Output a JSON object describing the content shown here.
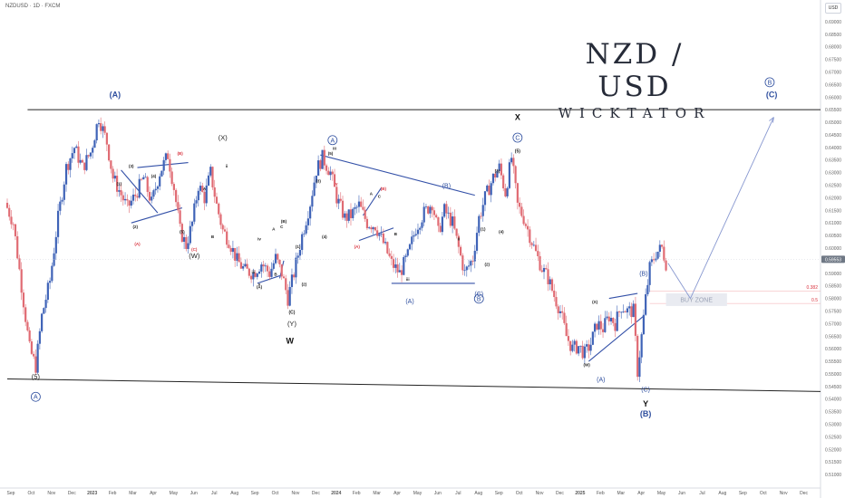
{
  "header": {
    "symbol_line": "NZDUSD · 1D · FXCM",
    "currency_badge": "USD"
  },
  "branding": {
    "pair": "NZD / USD",
    "author": "WICKTATOR"
  },
  "colors": {
    "bull": "#3f63b7",
    "bear": "#e06b73",
    "wave_line": "#3451a8",
    "label_blue": "#2f4f9f",
    "label_red": "#d9343f",
    "price_tag": "#6f7885"
  },
  "chart_data": {
    "type": "candlestick",
    "instrument": "NZDUSD",
    "timeframe": "1D",
    "ylim": [
      0.505,
      0.695
    ],
    "price_ticks": [
      "0.69500",
      "0.69000",
      "0.68500",
      "0.68000",
      "0.67500",
      "0.67000",
      "0.66500",
      "0.66000",
      "0.65500",
      "0.65000",
      "0.64500",
      "0.64000",
      "0.63500",
      "0.63000",
      "0.62500",
      "0.62000",
      "0.61500",
      "0.61000",
      "0.60500",
      "0.60000",
      "0.59500",
      "0.59000",
      "0.58500",
      "0.58000",
      "0.57500",
      "0.57000",
      "0.56500",
      "0.56000",
      "0.55500",
      "0.55000",
      "0.54500",
      "0.54000",
      "0.53500",
      "0.53000",
      "0.52500",
      "0.52000",
      "0.51500",
      "0.51000"
    ],
    "time_ticks": [
      {
        "label": "Sep",
        "t": 0
      },
      {
        "label": "Oct",
        "t": 1
      },
      {
        "label": "Nov",
        "t": 2
      },
      {
        "label": "Dec",
        "t": 3
      },
      {
        "label": "2023",
        "t": 4
      },
      {
        "label": "Feb",
        "t": 5
      },
      {
        "label": "Mar",
        "t": 6
      },
      {
        "label": "Apr",
        "t": 7
      },
      {
        "label": "May",
        "t": 8
      },
      {
        "label": "Jun",
        "t": 9
      },
      {
        "label": "Jul",
        "t": 10
      },
      {
        "label": "Aug",
        "t": 11
      },
      {
        "label": "Sep",
        "t": 12
      },
      {
        "label": "Oct",
        "t": 13
      },
      {
        "label": "Nov",
        "t": 14
      },
      {
        "label": "Dec",
        "t": 15
      },
      {
        "label": "2024",
        "t": 16
      },
      {
        "label": "Feb",
        "t": 17
      },
      {
        "label": "Mar",
        "t": 18
      },
      {
        "label": "Apr",
        "t": 19
      },
      {
        "label": "May",
        "t": 20
      },
      {
        "label": "Jun",
        "t": 21
      },
      {
        "label": "Jul",
        "t": 22
      },
      {
        "label": "Aug",
        "t": 23
      },
      {
        "label": "Sep",
        "t": 24
      },
      {
        "label": "Oct",
        "t": 25
      },
      {
        "label": "Nov",
        "t": 26
      },
      {
        "label": "Dec",
        "t": 27
      },
      {
        "label": "2025",
        "t": 28
      },
      {
        "label": "Feb",
        "t": 29
      },
      {
        "label": "Mar",
        "t": 30
      },
      {
        "label": "Apr",
        "t": 31
      },
      {
        "label": "May",
        "t": 32
      },
      {
        "label": "Jun",
        "t": 33
      },
      {
        "label": "Jul",
        "t": 34
      },
      {
        "label": "Aug",
        "t": 35
      },
      {
        "label": "Sep",
        "t": 36
      },
      {
        "label": "Oct",
        "t": 37
      },
      {
        "label": "Nov",
        "t": 38
      },
      {
        "label": "Dec",
        "t": 39
      }
    ],
    "price_path": [
      [
        0.0,
        0.618
      ],
      [
        0.4,
        0.61
      ],
      [
        0.8,
        0.585
      ],
      [
        1.2,
        0.56
      ],
      [
        1.5,
        0.553
      ],
      [
        1.8,
        0.573
      ],
      [
        2.2,
        0.587
      ],
      [
        2.6,
        0.612
      ],
      [
        3.0,
        0.632
      ],
      [
        3.4,
        0.64
      ],
      [
        3.8,
        0.632
      ],
      [
        4.2,
        0.638
      ],
      [
        4.6,
        0.652
      ],
      [
        5.0,
        0.642
      ],
      [
        5.3,
        0.628
      ],
      [
        5.6,
        0.623
      ],
      [
        6.0,
        0.616
      ],
      [
        6.4,
        0.621
      ],
      [
        6.8,
        0.628
      ],
      [
        7.2,
        0.618
      ],
      [
        7.6,
        0.63
      ],
      [
        8.0,
        0.637
      ],
      [
        8.3,
        0.624
      ],
      [
        8.6,
        0.607
      ],
      [
        8.9,
        0.601
      ],
      [
        9.2,
        0.61
      ],
      [
        9.5,
        0.625
      ],
      [
        9.8,
        0.62
      ],
      [
        10.1,
        0.63
      ],
      [
        10.4,
        0.617
      ],
      [
        10.7,
        0.607
      ],
      [
        11.0,
        0.603
      ],
      [
        11.4,
        0.595
      ],
      [
        11.8,
        0.591
      ],
      [
        12.2,
        0.59
      ],
      [
        12.6,
        0.594
      ],
      [
        13.0,
        0.59
      ],
      [
        13.3,
        0.596
      ],
      [
        13.6,
        0.59
      ],
      [
        13.9,
        0.58
      ],
      [
        14.2,
        0.59
      ],
      [
        14.6,
        0.605
      ],
      [
        15.0,
        0.618
      ],
      [
        15.3,
        0.631
      ],
      [
        15.6,
        0.636
      ],
      [
        16.0,
        0.63
      ],
      [
        16.3,
        0.62
      ],
      [
        16.7,
        0.612
      ],
      [
        17.0,
        0.613
      ],
      [
        17.4,
        0.617
      ],
      [
        17.8,
        0.61
      ],
      [
        18.2,
        0.609
      ],
      [
        18.6,
        0.602
      ],
      [
        19.0,
        0.594
      ],
      [
        19.4,
        0.59
      ],
      [
        19.8,
        0.597
      ],
      [
        20.2,
        0.608
      ],
      [
        20.6,
        0.614
      ],
      [
        21.0,
        0.618
      ],
      [
        21.3,
        0.606
      ],
      [
        21.6,
        0.615
      ],
      [
        22.0,
        0.61
      ],
      [
        22.3,
        0.6
      ],
      [
        22.6,
        0.59
      ],
      [
        23.0,
        0.596
      ],
      [
        23.3,
        0.612
      ],
      [
        23.6,
        0.62
      ],
      [
        24.0,
        0.628
      ],
      [
        24.3,
        0.632
      ],
      [
        24.6,
        0.622
      ],
      [
        24.9,
        0.636
      ],
      [
        25.2,
        0.617
      ],
      [
        25.5,
        0.612
      ],
      [
        25.8,
        0.605
      ],
      [
        26.1,
        0.598
      ],
      [
        26.4,
        0.592
      ],
      [
        26.7,
        0.588
      ],
      [
        27.0,
        0.581
      ],
      [
        27.3,
        0.575
      ],
      [
        27.6,
        0.565
      ],
      [
        27.9,
        0.56
      ],
      [
        28.2,
        0.561
      ],
      [
        28.5,
        0.558
      ],
      [
        28.8,
        0.562
      ],
      [
        29.1,
        0.57
      ],
      [
        29.4,
        0.568
      ],
      [
        29.7,
        0.573
      ],
      [
        30.0,
        0.57
      ],
      [
        30.3,
        0.577
      ],
      [
        30.6,
        0.575
      ],
      [
        30.9,
        0.575
      ],
      [
        31.1,
        0.551
      ],
      [
        31.3,
        0.565
      ],
      [
        31.5,
        0.58
      ],
      [
        31.7,
        0.592
      ],
      [
        32.0,
        0.598
      ],
      [
        32.3,
        0.6
      ],
      [
        32.5,
        0.594
      ]
    ],
    "current_price": "0.59553",
    "fib_levels": [
      {
        "label": "0.382",
        "price": 0.583
      },
      {
        "label": "0.5",
        "price": 0.578
      }
    ],
    "zones": [
      {
        "label": "BUY ZONE",
        "t0": 32.4,
        "t1": 35.4,
        "p0": 0.577,
        "p1": 0.582
      }
    ],
    "trendlines": [
      {
        "t0": 0.0,
        "p0": 0.548,
        "t1": 40.0,
        "p1": 0.543
      },
      {
        "t0": 1.0,
        "p0": 0.655,
        "t1": 40.0,
        "p1": 0.655
      },
      {
        "t0": 15.4,
        "p0": 0.637,
        "t1": 23.0,
        "p1": 0.621
      },
      {
        "t0": 18.9,
        "p0": 0.586,
        "t1": 23.0,
        "p1": 0.586
      },
      {
        "t0": 5.6,
        "p0": 0.631,
        "t1": 7.4,
        "p1": 0.614
      },
      {
        "t0": 6.1,
        "p0": 0.61,
        "t1": 8.6,
        "p1": 0.616
      },
      {
        "t0": 6.4,
        "p0": 0.632,
        "t1": 8.9,
        "p1": 0.634
      },
      {
        "t0": 12.3,
        "p0": 0.586,
        "t1": 13.4,
        "p1": 0.589
      },
      {
        "t0": 13.4,
        "p0": 0.588,
        "t1": 13.6,
        "p1": 0.595
      },
      {
        "t0": 17.3,
        "p0": 0.603,
        "t1": 19.0,
        "p1": 0.608
      },
      {
        "t0": 17.5,
        "p0": 0.613,
        "t1": 18.4,
        "p1": 0.624
      },
      {
        "t0": 28.6,
        "p0": 0.555,
        "t1": 31.3,
        "p1": 0.573
      },
      {
        "t0": 29.6,
        "p0": 0.58,
        "t1": 31.0,
        "p1": 0.582
      }
    ],
    "projection": [
      {
        "t0": 32.5,
        "p0": 0.594,
        "t1": 33.6,
        "p1": 0.58
      },
      {
        "t0": 33.6,
        "p0": 0.58,
        "t1": 37.7,
        "p1": 0.652
      }
    ],
    "wave_labels": [
      {
        "text": "(A)",
        "t": 5.3,
        "p": 0.66,
        "style": "big"
      },
      {
        "text": "(5)",
        "t": 1.4,
        "p": 0.548,
        "style": "mid"
      },
      {
        "text": "A",
        "t": 1.4,
        "p": 0.54,
        "style": "circle"
      },
      {
        "text": "(X)",
        "t": 10.6,
        "p": 0.643,
        "style": "mid"
      },
      {
        "text": "(W)",
        "t": 9.2,
        "p": 0.596,
        "style": "mid"
      },
      {
        "text": "(Y)",
        "t": 14.0,
        "p": 0.569,
        "style": "mid"
      },
      {
        "text": "(C)",
        "t": 14.0,
        "p": 0.574,
        "style": "small"
      },
      {
        "text": "W",
        "t": 13.9,
        "p": 0.562,
        "style": "bold"
      },
      {
        "text": "X",
        "t": 25.1,
        "p": 0.651,
        "style": "bold"
      },
      {
        "text": "C",
        "t": 25.1,
        "p": 0.643,
        "style": "circle"
      },
      {
        "text": "(5)",
        "t": 25.1,
        "p": 0.638,
        "style": "small"
      },
      {
        "text": "A",
        "t": 16.0,
        "p": 0.642,
        "style": "circle"
      },
      {
        "text": "(B)",
        "t": 21.6,
        "p": 0.624,
        "style": "midblue"
      },
      {
        "text": "(A)",
        "t": 19.8,
        "p": 0.578,
        "style": "midblue"
      },
      {
        "text": "B",
        "t": 23.2,
        "p": 0.579,
        "style": "circle"
      },
      {
        "text": "(C)",
        "t": 23.2,
        "p": 0.581,
        "style": "midblue"
      },
      {
        "text": "(B)",
        "t": 31.3,
        "p": 0.589,
        "style": "midblue"
      },
      {
        "text": "(A)",
        "t": 29.2,
        "p": 0.547,
        "style": "midblue"
      },
      {
        "text": "(C)",
        "t": 31.4,
        "p": 0.543,
        "style": "midblue"
      },
      {
        "text": "Y",
        "t": 31.4,
        "p": 0.537,
        "style": "bold"
      },
      {
        "text": "(B)",
        "t": 31.4,
        "p": 0.533,
        "style": "big"
      },
      {
        "text": "B",
        "t": 37.5,
        "p": 0.665,
        "style": "circle"
      },
      {
        "text": "(C)",
        "t": 37.6,
        "p": 0.66,
        "style": "big"
      },
      {
        "text": "(X)",
        "t": 28.9,
        "p": 0.578,
        "style": "tiny"
      },
      {
        "text": "(W)",
        "t": 28.5,
        "p": 0.553,
        "style": "tiny"
      },
      {
        "text": "(1)",
        "t": 5.5,
        "p": 0.625,
        "style": "tiny"
      },
      {
        "text": "(2)",
        "t": 6.3,
        "p": 0.608,
        "style": "tiny"
      },
      {
        "text": "(3)",
        "t": 6.1,
        "p": 0.632,
        "style": "tiny"
      },
      {
        "text": "(4)",
        "t": 7.2,
        "p": 0.628,
        "style": "tiny"
      },
      {
        "text": "(5)",
        "t": 8.6,
        "p": 0.606,
        "style": "tiny"
      },
      {
        "text": "(A)",
        "t": 6.4,
        "p": 0.601,
        "style": "tinyred"
      },
      {
        "text": "(B)",
        "t": 8.5,
        "p": 0.637,
        "style": "tinyred"
      },
      {
        "text": "(C)",
        "t": 9.2,
        "p": 0.599,
        "style": "tinyred"
      },
      {
        "text": "(1)",
        "t": 14.3,
        "p": 0.6,
        "style": "tiny"
      },
      {
        "text": "(2)",
        "t": 14.6,
        "p": 0.585,
        "style": "tiny"
      },
      {
        "text": "(3)",
        "t": 15.3,
        "p": 0.626,
        "style": "tiny"
      },
      {
        "text": "(4)",
        "t": 15.6,
        "p": 0.604,
        "style": "tiny"
      },
      {
        "text": "(5)",
        "t": 15.9,
        "p": 0.637,
        "style": "tiny"
      },
      {
        "text": "(1)",
        "t": 23.4,
        "p": 0.607,
        "style": "tiny"
      },
      {
        "text": "(2)",
        "t": 23.6,
        "p": 0.593,
        "style": "tiny"
      },
      {
        "text": "(3)",
        "t": 24.1,
        "p": 0.63,
        "style": "tiny"
      },
      {
        "text": "(4)",
        "t": 24.3,
        "p": 0.606,
        "style": "tiny"
      },
      {
        "text": "(B)",
        "t": 18.5,
        "p": 0.623,
        "style": "tinyred"
      },
      {
        "text": "(A)",
        "t": 17.2,
        "p": 0.6,
        "style": "tinyred"
      },
      {
        "text": "A",
        "t": 9.7,
        "p": 0.623,
        "style": "tiny"
      },
      {
        "text": "B",
        "t": 10.1,
        "p": 0.604,
        "style": "tiny"
      },
      {
        "text": "C",
        "t": 13.5,
        "p": 0.608,
        "style": "tiny"
      },
      {
        "text": "A",
        "t": 13.1,
        "p": 0.607,
        "style": "tiny"
      },
      {
        "text": "B",
        "t": 13.2,
        "p": 0.589,
        "style": "tiny"
      },
      {
        "text": "(A)",
        "t": 12.4,
        "p": 0.584,
        "style": "tiny"
      },
      {
        "text": "(B)",
        "t": 13.6,
        "p": 0.61,
        "style": "tiny"
      },
      {
        "text": "A",
        "t": 17.9,
        "p": 0.621,
        "style": "tiny"
      },
      {
        "text": "B",
        "t": 19.1,
        "p": 0.605,
        "style": "tiny"
      },
      {
        "text": "C",
        "t": 18.3,
        "p": 0.62,
        "style": "tiny"
      },
      {
        "text": "iii",
        "t": 16.1,
        "p": 0.639,
        "style": "tiny"
      },
      {
        "text": "iv",
        "t": 12.4,
        "p": 0.603,
        "style": "tiny"
      },
      {
        "text": "v",
        "t": 16.2,
        "p": 0.625,
        "style": "tinyred"
      },
      {
        "text": "iii",
        "t": 19.7,
        "p": 0.587,
        "style": "tiny"
      },
      {
        "text": "v",
        "t": 12.4,
        "p": 0.585,
        "style": "tiny"
      },
      {
        "text": "iii",
        "t": 12.1,
        "p": 0.59,
        "style": "tiny"
      },
      {
        "text": "ii",
        "t": 22.2,
        "p": 0.603,
        "style": "tiny"
      },
      {
        "text": "ii",
        "t": 10.8,
        "p": 0.632,
        "style": "tiny"
      }
    ]
  }
}
